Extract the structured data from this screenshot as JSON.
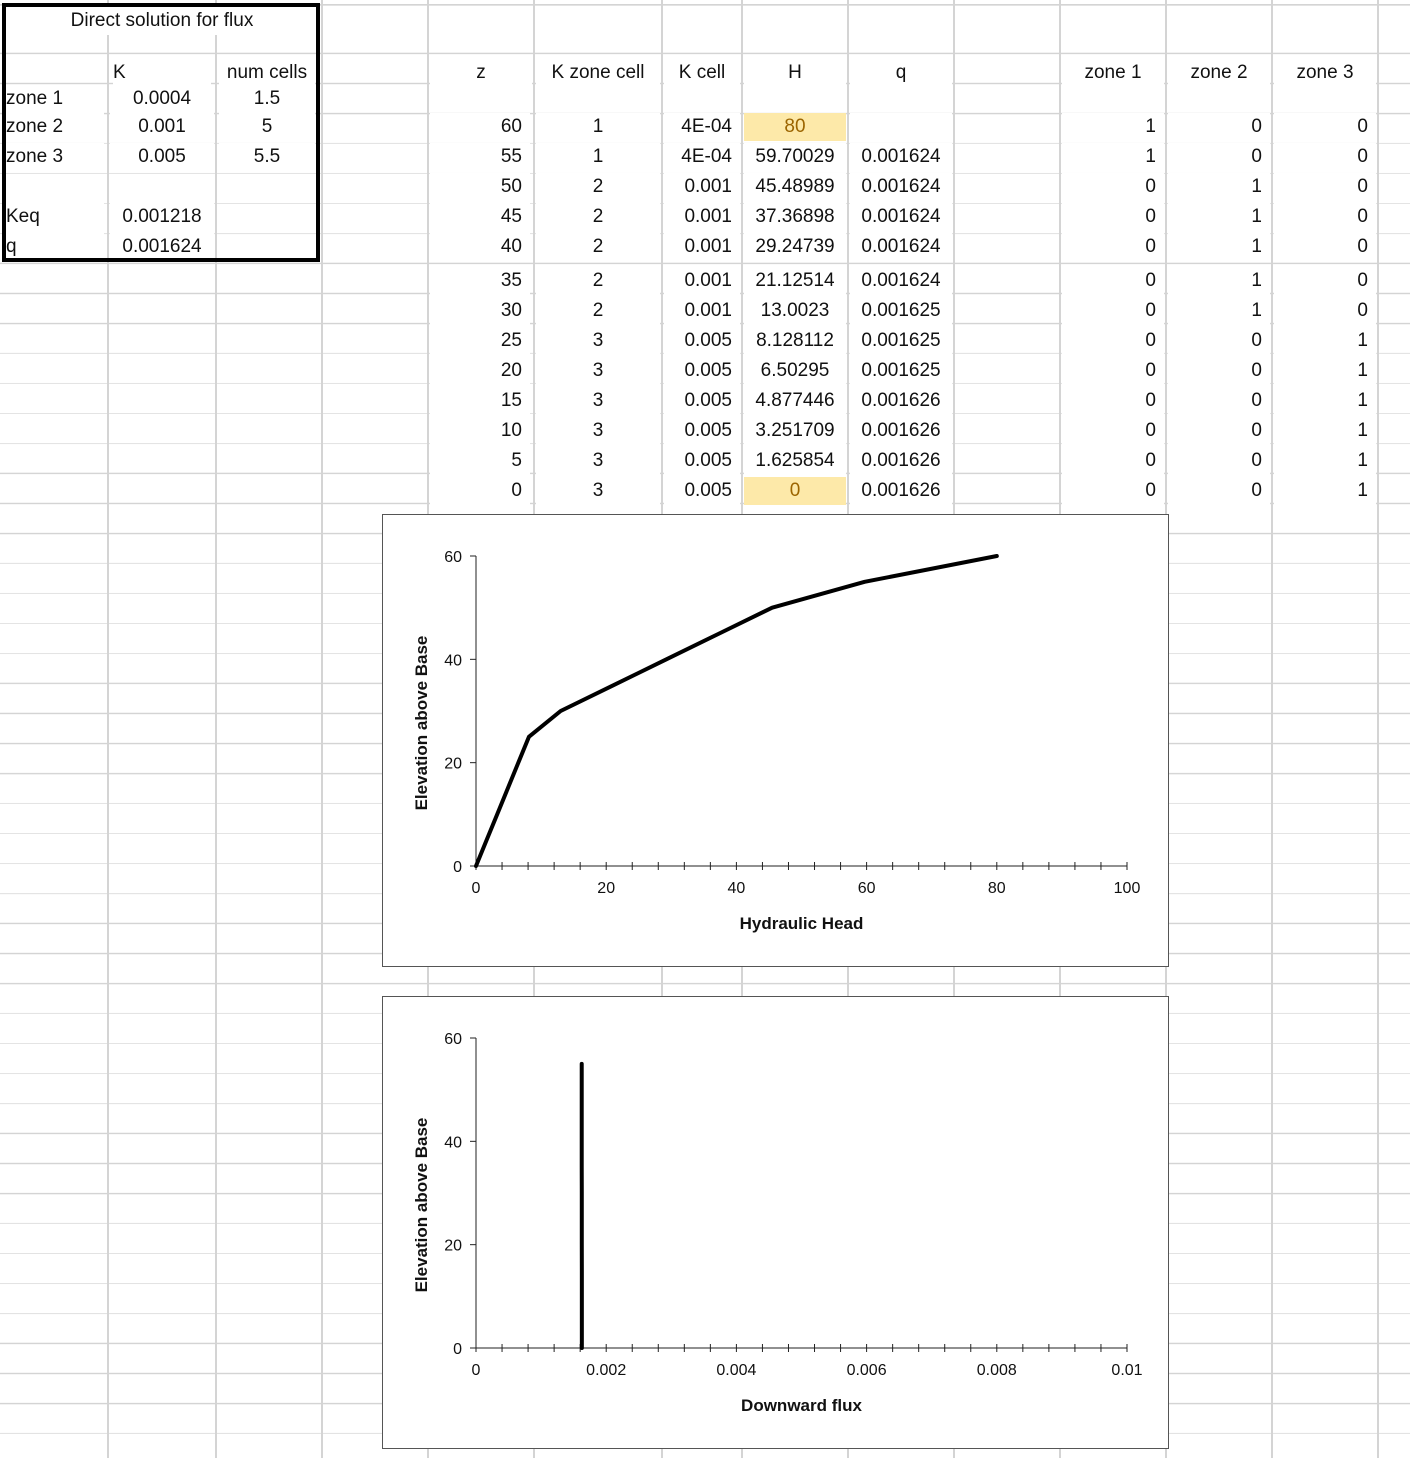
{
  "summary": {
    "title": "Direct solution for flux",
    "header_k": "K",
    "header_cells": "num cells",
    "zones": [
      {
        "name": "zone 1",
        "k": "0.0004",
        "cells": "1.5"
      },
      {
        "name": "zone 2",
        "k": "0.001",
        "cells": "5"
      },
      {
        "name": "zone 3",
        "k": "0.005",
        "cells": "5.5"
      }
    ],
    "keq_label": "Keq",
    "keq_value": "0.001218",
    "q_label": "q",
    "q_value": "0.001624"
  },
  "table": {
    "headers": [
      "z",
      "K zone cell",
      "K cell",
      "H",
      "q"
    ],
    "rows": [
      [
        "60",
        "1",
        "4E-04",
        "80",
        ""
      ],
      [
        "55",
        "1",
        "4E-04",
        "59.70029",
        "0.001624"
      ],
      [
        "50",
        "2",
        "0.001",
        "45.48989",
        "0.001624"
      ],
      [
        "45",
        "2",
        "0.001",
        "37.36898",
        "0.001624"
      ],
      [
        "40",
        "2",
        "0.001",
        "29.24739",
        "0.001624"
      ],
      [
        "35",
        "2",
        "0.001",
        "21.12514",
        "0.001624"
      ],
      [
        "30",
        "2",
        "0.001",
        "13.0023",
        "0.001625"
      ],
      [
        "25",
        "3",
        "0.005",
        "8.128112",
        "0.001625"
      ],
      [
        "20",
        "3",
        "0.005",
        "6.50295",
        "0.001625"
      ],
      [
        "15",
        "3",
        "0.005",
        "4.877446",
        "0.001626"
      ],
      [
        "10",
        "3",
        "0.005",
        "3.251709",
        "0.001626"
      ],
      [
        "5",
        "3",
        "0.005",
        "1.625854",
        "0.001626"
      ],
      [
        "0",
        "3",
        "0.005",
        "0",
        "0.001626"
      ]
    ],
    "highlight_color": "#fde9a9"
  },
  "zone_flags": {
    "headers": [
      "zone 1",
      "zone 2",
      "zone 3"
    ],
    "rows": [
      [
        "1",
        "0",
        "0"
      ],
      [
        "1",
        "0",
        "0"
      ],
      [
        "0",
        "1",
        "0"
      ],
      [
        "0",
        "1",
        "0"
      ],
      [
        "0",
        "1",
        "0"
      ],
      [
        "0",
        "1",
        "0"
      ],
      [
        "0",
        "1",
        "0"
      ],
      [
        "0",
        "0",
        "1"
      ],
      [
        "0",
        "0",
        "1"
      ],
      [
        "0",
        "0",
        "1"
      ],
      [
        "0",
        "0",
        "1"
      ],
      [
        "0",
        "0",
        "1"
      ],
      [
        "0",
        "0",
        "1"
      ]
    ]
  },
  "chart_data": [
    {
      "type": "line",
      "title": "",
      "xlabel": "Hydraulic Head",
      "ylabel": "Elevation above Base",
      "xlim": [
        0,
        100
      ],
      "ylim": [
        0,
        60
      ],
      "xticks": [
        "0",
        "20",
        "40",
        "60",
        "80",
        "100"
      ],
      "yticks": [
        "0",
        "20",
        "40",
        "60"
      ],
      "grid": false,
      "series": [
        {
          "x": [
            80,
            59.70029,
            45.48989,
            37.36898,
            29.24739,
            21.12514,
            13.0023,
            8.128112,
            6.50295,
            4.877446,
            3.251709,
            1.625854,
            0
          ],
          "y": [
            60,
            55,
            50,
            45,
            40,
            35,
            30,
            25,
            20,
            15,
            10,
            5,
            0
          ]
        }
      ]
    },
    {
      "type": "line",
      "title": "",
      "xlabel": "Downward flux",
      "ylabel": "Elevation above Base",
      "xlim": [
        0,
        0.01
      ],
      "ylim": [
        0,
        60
      ],
      "xticks": [
        "0",
        "0.002",
        "0.004",
        "0.006",
        "0.008",
        "0.01"
      ],
      "yticks": [
        "0",
        "20",
        "40",
        "60"
      ],
      "grid": false,
      "series": [
        {
          "x": [
            0.001624,
            0.001624,
            0.001624,
            0.001624,
            0.001624,
            0.001625,
            0.001625,
            0.001625,
            0.001626,
            0.001626,
            0.001626,
            0.001626
          ],
          "y": [
            55,
            50,
            45,
            40,
            35,
            30,
            25,
            20,
            15,
            10,
            5,
            0
          ]
        }
      ]
    }
  ]
}
